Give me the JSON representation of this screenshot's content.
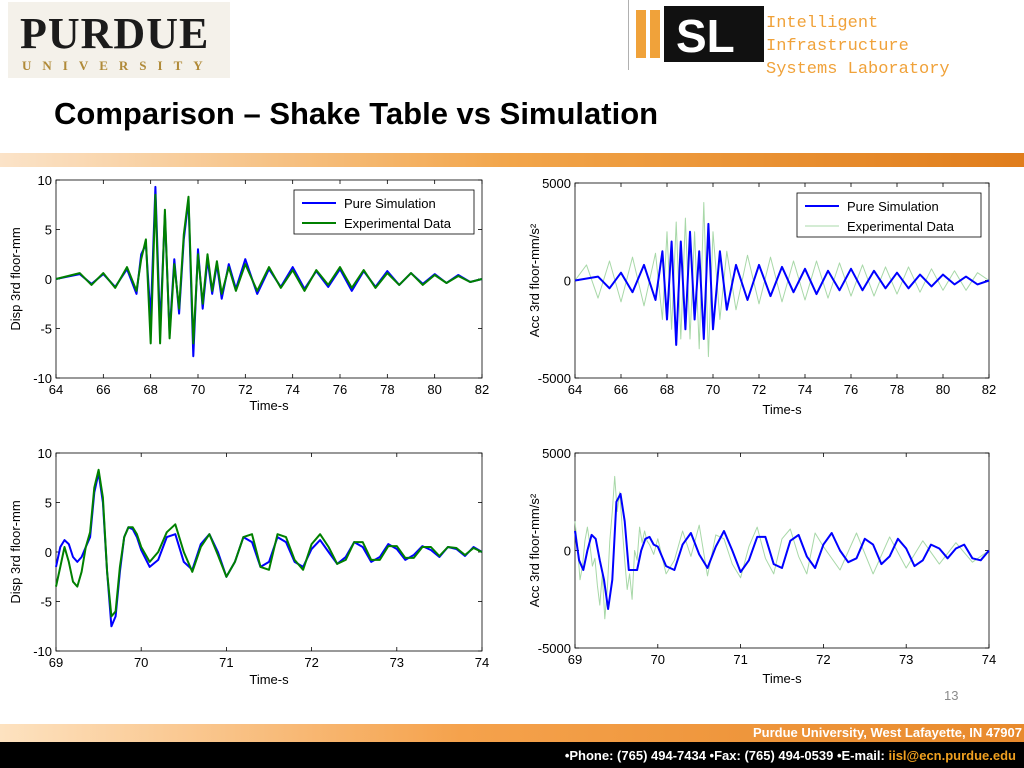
{
  "header": {
    "purdue_word": "PURDUE",
    "purdue_sub": "UNIVERSITY",
    "lab_mark": "IISL",
    "lab_line1": "Intelligent Infrastructure",
    "lab_line2": "Systems Laboratory"
  },
  "slide": {
    "title": "Comparison – Shake Table vs Simulation",
    "page_number": "13"
  },
  "footer": {
    "address": "Purdue University, West Lafayette, IN 47907",
    "contact_prefix": "•Phone: (765) 494-7434 •Fax: (765) 494-0539 •E-mail: ",
    "email": "iisl@ecn.purdue.edu"
  },
  "colors": {
    "simulation": "#0000ff",
    "experimental_disp": "#008000",
    "experimental_acc": "#a8d8a8",
    "accent_orange": "#f2a54a"
  },
  "chart_data": [
    {
      "type": "line",
      "panel": "top-left",
      "xlabel": "Time-s",
      "ylabel": "Disp 3rd floor-mm",
      "xlim": [
        64,
        82
      ],
      "ylim": [
        -10,
        10
      ],
      "xticks": [
        64,
        66,
        68,
        70,
        72,
        74,
        76,
        78,
        80,
        82
      ],
      "yticks": [
        -10,
        -5,
        0,
        5,
        10
      ],
      "legend": "top-right",
      "series": [
        {
          "name": "Pure Simulation",
          "color": "#0000ff",
          "width": 2,
          "x": [
            64,
            65,
            65.5,
            66,
            66.5,
            67,
            67.4,
            67.6,
            67.8,
            68,
            68.2,
            68.4,
            68.6,
            68.8,
            69,
            69.2,
            69.4,
            69.6,
            69.8,
            70,
            70.2,
            70.4,
            70.6,
            70.8,
            71,
            71.3,
            71.6,
            72,
            72.5,
            73,
            73.5,
            74,
            74.5,
            75,
            75.5,
            76,
            76.5,
            77,
            77.5,
            78,
            78.5,
            79,
            79.5,
            80,
            80.5,
            81,
            81.5,
            82
          ],
          "y": [
            0,
            0.5,
            -0.5,
            0.5,
            -0.8,
            1.0,
            -1.5,
            2.5,
            3.5,
            -4.0,
            9.3,
            -5.0,
            6.5,
            -5.5,
            2.0,
            -3.5,
            4.0,
            8.0,
            -7.8,
            3.0,
            -3.0,
            2.0,
            -1.5,
            1.5,
            -2.0,
            1.5,
            -1.0,
            2.0,
            -1.5,
            1.0,
            -0.8,
            1.2,
            -1.0,
            0.8,
            -0.8,
            1.0,
            -1.2,
            0.8,
            -0.8,
            0.8,
            -0.6,
            0.6,
            -0.5,
            0.5,
            -0.4,
            0.4,
            -0.3,
            0
          ]
        },
        {
          "name": "Experimental Data",
          "color": "#008000",
          "width": 2,
          "x": [
            64,
            65,
            65.5,
            66,
            66.5,
            67,
            67.4,
            67.6,
            67.8,
            68,
            68.2,
            68.4,
            68.6,
            68.8,
            69,
            69.2,
            69.4,
            69.6,
            69.8,
            70,
            70.2,
            70.4,
            70.6,
            70.8,
            71,
            71.3,
            71.6,
            72,
            72.5,
            73,
            73.5,
            74,
            74.5,
            75,
            75.5,
            76,
            76.5,
            77,
            77.5,
            78,
            78.5,
            79,
            79.5,
            80,
            80.5,
            81,
            81.5,
            82
          ],
          "y": [
            0,
            0.6,
            -0.6,
            0.6,
            -0.9,
            1.2,
            -1.2,
            2.0,
            4.0,
            -6.5,
            8.5,
            -6.5,
            7.0,
            -6.0,
            1.5,
            -3.0,
            4.5,
            8.3,
            -6.5,
            2.5,
            -2.5,
            2.5,
            -1.2,
            1.8,
            -1.5,
            1.2,
            -1.2,
            1.5,
            -1.2,
            1.2,
            -0.9,
            0.9,
            -1.2,
            0.9,
            -0.6,
            1.2,
            -0.9,
            0.9,
            -0.9,
            0.6,
            -0.6,
            0.6,
            -0.6,
            0.4,
            -0.4,
            0.3,
            -0.3,
            0
          ]
        }
      ]
    },
    {
      "type": "line",
      "panel": "top-right",
      "xlabel": "Time-s",
      "ylabel": "Acc 3rd floor-mm/s²",
      "xlim": [
        64,
        82
      ],
      "ylim": [
        -5000,
        5000
      ],
      "xticks": [
        64,
        66,
        68,
        70,
        72,
        74,
        76,
        78,
        80,
        82
      ],
      "yticks": [
        -5000,
        0,
        5000
      ],
      "legend": "top-right",
      "series": [
        {
          "name": "Pure Simulation",
          "color": "#0000ff",
          "width": 2,
          "x": [
            64,
            65,
            65.5,
            66,
            66.5,
            67,
            67.5,
            67.8,
            68,
            68.2,
            68.4,
            68.6,
            68.8,
            69,
            69.2,
            69.4,
            69.6,
            69.8,
            70,
            70.3,
            70.6,
            71,
            71.5,
            72,
            72.5,
            73,
            73.5,
            74,
            74.5,
            75,
            75.5,
            76,
            76.5,
            77,
            77.5,
            78,
            78.5,
            79,
            79.5,
            80,
            80.5,
            81,
            81.5,
            82
          ],
          "y": [
            0,
            200,
            -400,
            400,
            -600,
            800,
            -1000,
            1500,
            -2000,
            2000,
            -3300,
            2000,
            -2500,
            2500,
            -2000,
            1500,
            -3000,
            2900,
            -2500,
            1500,
            -1500,
            800,
            -1000,
            800,
            -800,
            700,
            -600,
            600,
            -700,
            500,
            -500,
            600,
            -500,
            500,
            -400,
            400,
            -400,
            300,
            -300,
            300,
            -200,
            200,
            -200,
            0
          ]
        },
        {
          "name": "Experimental Data",
          "color": "#a8d8a8",
          "width": 1,
          "x": [
            64,
            64.5,
            65,
            65.5,
            66,
            66.5,
            67,
            67.5,
            67.8,
            68,
            68.2,
            68.4,
            68.6,
            68.8,
            69,
            69.2,
            69.4,
            69.6,
            69.8,
            70,
            70.3,
            70.6,
            71,
            71.5,
            72,
            72.5,
            73,
            73.5,
            74,
            74.5,
            75,
            75.5,
            76,
            76.5,
            77,
            77.5,
            78,
            78.5,
            79,
            79.5,
            80,
            80.5,
            81,
            81.5,
            82
          ],
          "y": [
            0,
            800,
            -900,
            1000,
            -1100,
            1200,
            -1300,
            1400,
            -2000,
            2500,
            -2500,
            3000,
            -3000,
            3200,
            -3000,
            2500,
            -3500,
            4000,
            -3900,
            2500,
            -2000,
            1500,
            -1500,
            1300,
            -1200,
            1200,
            -1100,
            1000,
            -1000,
            1000,
            -900,
            900,
            -800,
            800,
            -800,
            700,
            -700,
            700,
            -600,
            600,
            -500,
            500,
            -500,
            400,
            0
          ]
        }
      ]
    },
    {
      "type": "line",
      "panel": "bottom-left",
      "xlabel": "Time-s",
      "ylabel": "Disp 3rd floor-mm",
      "xlim": [
        69,
        74
      ],
      "ylim": [
        -10,
        10
      ],
      "xticks": [
        69,
        70,
        71,
        72,
        73,
        74
      ],
      "yticks": [
        -10,
        -5,
        0,
        5,
        10
      ],
      "series": [
        {
          "name": "Pure Simulation",
          "color": "#0000ff",
          "width": 2,
          "x": [
            69,
            69.05,
            69.1,
            69.15,
            69.2,
            69.25,
            69.3,
            69.35,
            69.4,
            69.45,
            69.5,
            69.55,
            69.6,
            69.65,
            69.7,
            69.75,
            69.8,
            69.85,
            69.9,
            69.95,
            70,
            70.1,
            70.2,
            70.3,
            70.4,
            70.5,
            70.6,
            70.7,
            70.8,
            70.9,
            71,
            71.1,
            71.2,
            71.3,
            71.4,
            71.5,
            71.6,
            71.7,
            71.8,
            71.9,
            72,
            72.1,
            72.2,
            72.3,
            72.4,
            72.5,
            72.6,
            72.7,
            72.8,
            72.9,
            73,
            73.1,
            73.2,
            73.3,
            73.4,
            73.5,
            73.6,
            73.7,
            73.8,
            73.9,
            74
          ],
          "y": [
            -1.5,
            0.5,
            1.2,
            0.8,
            -0.5,
            -1.0,
            -0.5,
            0.5,
            1.5,
            6.0,
            8.0,
            5.0,
            -2.0,
            -7.5,
            -6.5,
            -2.0,
            1.5,
            2.5,
            2.3,
            1.5,
            0.2,
            -1.5,
            -0.8,
            1.5,
            1.8,
            -1.0,
            -1.8,
            0.8,
            1.8,
            0,
            -2.5,
            -1.0,
            1.5,
            1.0,
            -1.5,
            -1.0,
            1.5,
            1.0,
            -1.0,
            -1.5,
            0.3,
            1.2,
            0,
            -1.2,
            -0.5,
            1.0,
            0.5,
            -1.0,
            -0.5,
            0.8,
            0.3,
            -0.8,
            -0.3,
            0.6,
            0.2,
            -0.5,
            0.5,
            0.3,
            -0.4,
            0.5,
            0
          ]
        },
        {
          "name": "Experimental Data",
          "color": "#008000",
          "width": 2,
          "x": [
            69,
            69.05,
            69.1,
            69.15,
            69.2,
            69.25,
            69.3,
            69.35,
            69.4,
            69.45,
            69.5,
            69.55,
            69.6,
            69.65,
            69.7,
            69.75,
            69.8,
            69.85,
            69.9,
            69.95,
            70,
            70.1,
            70.2,
            70.3,
            70.4,
            70.5,
            70.6,
            70.7,
            70.8,
            70.9,
            71,
            71.1,
            71.2,
            71.3,
            71.4,
            71.5,
            71.6,
            71.7,
            71.8,
            71.9,
            72,
            72.1,
            72.2,
            72.3,
            72.4,
            72.5,
            72.6,
            72.7,
            72.8,
            72.9,
            73,
            73.1,
            73.2,
            73.3,
            73.4,
            73.5,
            73.6,
            73.7,
            73.8,
            73.9,
            74
          ],
          "y": [
            -3.5,
            -1.5,
            0.5,
            -1.0,
            -3.0,
            -3.5,
            -2.0,
            0.5,
            2.0,
            6.5,
            8.3,
            5.5,
            -2.0,
            -6.5,
            -6.0,
            -1.5,
            1.5,
            2.5,
            2.5,
            1.8,
            0.5,
            -1.0,
            0,
            2.0,
            2.8,
            0,
            -2.0,
            0.5,
            1.8,
            -0.3,
            -2.5,
            -1.0,
            1.5,
            1.8,
            -1.5,
            -1.8,
            1.8,
            1.5,
            -0.8,
            -1.8,
            0.8,
            1.8,
            0.5,
            -1.2,
            -0.8,
            1.0,
            1.0,
            -0.8,
            -0.8,
            0.6,
            0.6,
            -0.6,
            -0.6,
            0.5,
            0.5,
            -0.4,
            0.5,
            0.4,
            -0.3,
            0.4,
            0
          ]
        }
      ]
    },
    {
      "type": "line",
      "panel": "bottom-right",
      "xlabel": "Time-s",
      "ylabel": "Acc 3rd floor-mm/s²",
      "xlim": [
        69,
        74
      ],
      "ylim": [
        -5000,
        5000
      ],
      "xticks": [
        69,
        70,
        71,
        72,
        73,
        74
      ],
      "yticks": [
        -5000,
        0,
        5000
      ],
      "series": [
        {
          "name": "Pure Simulation",
          "color": "#0000ff",
          "width": 2,
          "x": [
            69,
            69.05,
            69.1,
            69.15,
            69.2,
            69.25,
            69.3,
            69.35,
            69.4,
            69.45,
            69.5,
            69.55,
            69.6,
            69.65,
            69.7,
            69.75,
            69.8,
            69.85,
            69.9,
            69.95,
            70,
            70.1,
            70.2,
            70.3,
            70.4,
            70.5,
            70.6,
            70.7,
            70.8,
            70.9,
            71,
            71.1,
            71.2,
            71.3,
            71.4,
            71.5,
            71.6,
            71.7,
            71.8,
            71.9,
            72,
            72.1,
            72.2,
            72.3,
            72.4,
            72.5,
            72.6,
            72.7,
            72.8,
            72.9,
            73,
            73.1,
            73.2,
            73.3,
            73.4,
            73.5,
            73.6,
            73.7,
            73.8,
            73.9,
            74
          ],
          "y": [
            1000,
            -500,
            -1000,
            0,
            800,
            600,
            -500,
            -1500,
            -3000,
            -1500,
            2500,
            2900,
            1500,
            -1000,
            -1000,
            -1000,
            0,
            600,
            700,
            300,
            200,
            -800,
            -1000,
            300,
            900,
            -200,
            -900,
            200,
            1000,
            0,
            -1100,
            -500,
            700,
            700,
            -700,
            -900,
            500,
            800,
            -300,
            -900,
            300,
            900,
            0,
            -600,
            -400,
            600,
            300,
            -700,
            -300,
            600,
            100,
            -800,
            -500,
            300,
            100,
            -400,
            100,
            300,
            -400,
            -500,
            0
          ]
        },
        {
          "name": "Experimental Data",
          "color": "#a8d8a8",
          "width": 1,
          "x": [
            69,
            69.03,
            69.06,
            69.09,
            69.12,
            69.15,
            69.18,
            69.21,
            69.24,
            69.27,
            69.3,
            69.33,
            69.36,
            69.39,
            69.42,
            69.45,
            69.48,
            69.51,
            69.54,
            69.57,
            69.6,
            69.63,
            69.66,
            69.69,
            69.72,
            69.75,
            69.78,
            69.81,
            69.84,
            69.87,
            69.9,
            69.95,
            70,
            70.1,
            70.2,
            70.3,
            70.4,
            70.5,
            70.6,
            70.7,
            70.8,
            70.9,
            71,
            71.1,
            71.2,
            71.3,
            71.4,
            71.5,
            71.6,
            71.7,
            71.8,
            71.9,
            72,
            72.2,
            72.4,
            72.6,
            72.8,
            73,
            73.2,
            73.4,
            73.6,
            73.8,
            74
          ],
          "y": [
            1500,
            200,
            -1500,
            -800,
            500,
            1200,
            300,
            -800,
            -400,
            -1800,
            -2800,
            -1200,
            -3500,
            -2000,
            500,
            2000,
            3800,
            2000,
            3000,
            1200,
            -500,
            -2000,
            -1200,
            -2500,
            0,
            -500,
            1200,
            400,
            1000,
            500,
            300,
            -200,
            600,
            -1200,
            -500,
            1000,
            -300,
            1300,
            -1300,
            800,
            600,
            -700,
            -1400,
            200,
            1200,
            -400,
            -1200,
            600,
            1100,
            -300,
            -1200,
            900,
            200,
            -1000,
            900,
            -1200,
            700,
            -900,
            500,
            -700,
            400,
            -600,
            0
          ]
        }
      ]
    }
  ]
}
